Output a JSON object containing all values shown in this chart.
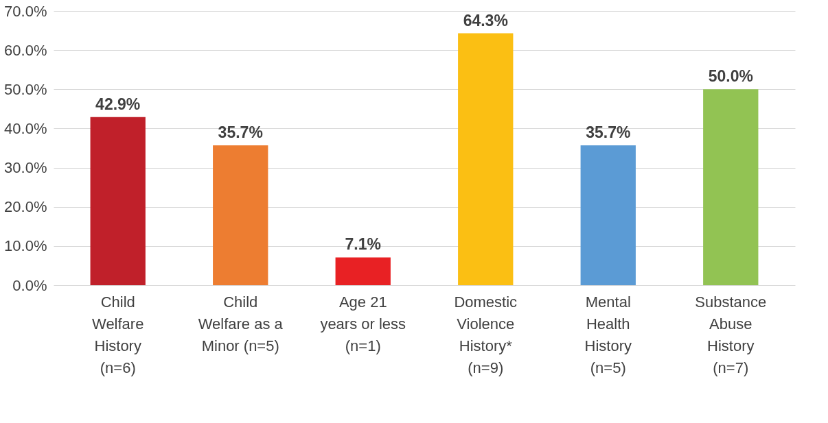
{
  "chart_data": {
    "type": "bar",
    "categories": [
      "Child\nWelfare\nHistory\n(n=6)",
      "Child\nWelfare as a\nMinor (n=5)",
      "Age 21\nyears or less\n(n=1)",
      "Domestic\nViolence\nHistory*\n(n=9)",
      "Mental\nHealth\nHistory\n(n=5)",
      "Substance\nAbuse\nHistory\n(n=7)"
    ],
    "values": [
      42.9,
      35.7,
      7.1,
      64.3,
      35.7,
      50.0
    ],
    "colors": [
      "#c0202a",
      "#ed7d31",
      "#e82124",
      "#fbbf13",
      "#5b9bd5",
      "#92c353"
    ],
    "value_labels": [
      "42.9%",
      "35.7%",
      "7.1%",
      "64.3%",
      "35.7%",
      "50.0%"
    ],
    "ylim": [
      0,
      70
    ],
    "yticks": [
      {
        "value": 0,
        "label": "0.0%"
      },
      {
        "value": 10,
        "label": "10.0%"
      },
      {
        "value": 20,
        "label": "20.0%"
      },
      {
        "value": 30,
        "label": "30.0%"
      },
      {
        "value": 40,
        "label": "40.0%"
      },
      {
        "value": 50,
        "label": "50.0%"
      },
      {
        "value": 60,
        "label": "60.0%"
      },
      {
        "value": 70,
        "label": "70.0%"
      }
    ],
    "grid": "y"
  }
}
